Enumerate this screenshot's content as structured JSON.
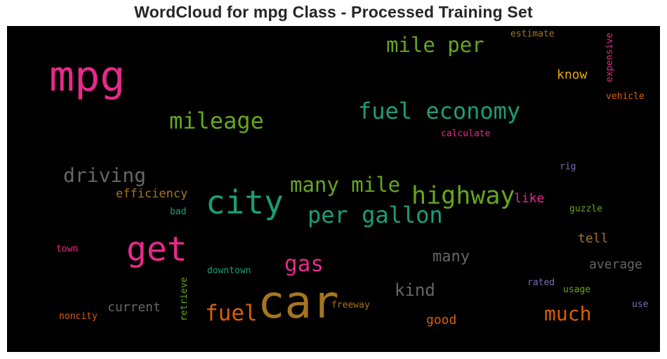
{
  "title": "WordCloud for mpg Class - Processed Training Set",
  "words": [
    {
      "text": "mpg",
      "color": "#e7298a"
    },
    {
      "text": "car",
      "color": "#a6761d"
    },
    {
      "text": "get",
      "color": "#e7298a"
    },
    {
      "text": "city",
      "color": "#1b9e77"
    },
    {
      "text": "highway",
      "color": "#66a61e"
    },
    {
      "text": "fuel economy",
      "color": "#1b9e77"
    },
    {
      "text": "per gallon",
      "color": "#1b9e77"
    },
    {
      "text": "many mile",
      "color": "#66a61e"
    },
    {
      "text": "mileage",
      "color": "#66a61e"
    },
    {
      "text": "mile per",
      "color": "#66a61e"
    },
    {
      "text": "driving",
      "color": "#666666"
    },
    {
      "text": "gas",
      "color": "#e7298a"
    },
    {
      "text": "fuel",
      "color": "#d95f02"
    },
    {
      "text": "much",
      "color": "#d95f02"
    },
    {
      "text": "kind",
      "color": "#666666"
    },
    {
      "text": "many",
      "color": "#666666"
    },
    {
      "text": "efficiency",
      "color": "#a6761d"
    },
    {
      "text": "like",
      "color": "#e7298a"
    },
    {
      "text": "current",
      "color": "#666666"
    },
    {
      "text": "average",
      "color": "#666666"
    },
    {
      "text": "good",
      "color": "#d95f02"
    },
    {
      "text": "tell",
      "color": "#a6761d"
    },
    {
      "text": "know",
      "color": "#e6ab02"
    },
    {
      "text": "estimate",
      "color": "#a6761d"
    },
    {
      "text": "expensive",
      "color": "#e7298a"
    },
    {
      "text": "vehicle",
      "color": "#d95f02"
    },
    {
      "text": "calculate",
      "color": "#e7298a"
    },
    {
      "text": "rig",
      "color": "#7570b3"
    },
    {
      "text": "guzzle",
      "color": "#66a61e"
    },
    {
      "text": "bad",
      "color": "#1b9e77"
    },
    {
      "text": "town",
      "color": "#e7298a"
    },
    {
      "text": "downtown",
      "color": "#1b9e77"
    },
    {
      "text": "retrieve",
      "color": "#66a61e"
    },
    {
      "text": "freeway",
      "color": "#a6761d"
    },
    {
      "text": "noncity",
      "color": "#d95f02"
    },
    {
      "text": "rated",
      "color": "#7570b3"
    },
    {
      "text": "usage",
      "color": "#66a61e"
    },
    {
      "text": "use",
      "color": "#7570b3"
    }
  ]
}
